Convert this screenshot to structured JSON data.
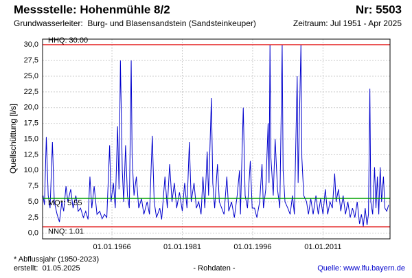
{
  "chart_data": {
    "type": "line",
    "title": "Messstelle: Hohenmühle 8/2",
    "number": "Nr: 5503",
    "subtitle": "Grundwasserleiter:  Burg- und Blasensandstein (Sandsteinkeuper)",
    "period": "Zeitraum: Jul 1951 - Apr 2025",
    "y_label": "Quellschüttung [l/s]",
    "footnote": "* Abflussjahr (1950-2023)",
    "created": "erstellt:  01.05.2025",
    "raw": "- Rohdaten -",
    "source": "Quelle: www.lfu.bayern.de",
    "xlim": [
      1951.2,
      2025.3
    ],
    "ylim": [
      -0.9,
      30.9
    ],
    "grid": true,
    "xticks": [
      {
        "value": 1966,
        "label": "01.01.1966"
      },
      {
        "value": 1981,
        "label": "01.01.1981"
      },
      {
        "value": 1996,
        "label": "01.01.1996"
      },
      {
        "value": 2011,
        "label": "01.01.2011"
      }
    ],
    "yticks": [
      {
        "value": 0,
        "label": "0,0"
      },
      {
        "value": 2.5,
        "label": "2,5"
      },
      {
        "value": 5,
        "label": "5,0"
      },
      {
        "value": 7.5,
        "label": "7,5"
      },
      {
        "value": 10,
        "label": "10,0"
      },
      {
        "value": 12.5,
        "label": "12,5"
      },
      {
        "value": 15,
        "label": "15,0"
      },
      {
        "value": 17.5,
        "label": "17,5"
      },
      {
        "value": 20,
        "label": "20,0"
      },
      {
        "value": 22.5,
        "label": "22,5"
      },
      {
        "value": 25,
        "label": "25,0"
      },
      {
        "value": 27.5,
        "label": "27,5"
      },
      {
        "value": 30,
        "label": "30,0"
      }
    ],
    "reference_lines": [
      {
        "label": "HHQ: 30.00",
        "value": 30,
        "color": "#e00000"
      },
      {
        "label": "MQ*: 5.55",
        "value": 5.55,
        "color": "#00a000"
      },
      {
        "label": "NNQ: 1.01",
        "value": 1.01,
        "color": "#e00000"
      }
    ],
    "series": [
      {
        "name": "Quellschüttung",
        "color": "#0000cc",
        "x": [
          1951.3,
          1951.6,
          1952,
          1952.4,
          1952.8,
          1953.3,
          1953.7,
          1954.3,
          1954.8,
          1955.3,
          1955.7,
          1956.2,
          1956.6,
          1957.2,
          1957.7,
          1958.3,
          1958.8,
          1959.3,
          1959.9,
          1960.4,
          1960.9,
          1961.3,
          1961.7,
          1962.2,
          1962.8,
          1963.4,
          1963.9,
          1964.4,
          1964.9,
          1965.5,
          1965.8,
          1966.3,
          1966.7,
          1967.2,
          1967.5,
          1967.8,
          1968.2,
          1968.5,
          1968.9,
          1969.3,
          1969.7,
          1970.1,
          1970.3,
          1970.7,
          1971.2,
          1971.7,
          1972.3,
          1972.8,
          1973.5,
          1974,
          1974.6,
          1975,
          1975.5,
          1976.2,
          1976.6,
          1977.3,
          1977.8,
          1978.3,
          1978.8,
          1979.3,
          1979.8,
          1980.4,
          1981,
          1981.5,
          1982,
          1982.5,
          1982.9,
          1983.5,
          1984,
          1984.5,
          1985,
          1985.4,
          1985.8,
          1986.3,
          1986.6,
          1987.2,
          1987.5,
          1987.9,
          1988.5,
          1988.9,
          1989.4,
          1989.9,
          1990.5,
          1990.9,
          1991.5,
          1992.1,
          1992.7,
          1993.2,
          1993.4,
          1994,
          1994.4,
          1994.9,
          1995.5,
          1995.9,
          1996.4,
          1996.9,
          1997.5,
          1998,
          1998.3,
          1998.8,
          1999.3,
          1999.5,
          1999.7,
          1999.9,
          2000.4,
          2000.8,
          2001.3,
          2001.8,
          2002.3,
          2002.5,
          2002.9,
          2003.5,
          2004,
          2004.5,
          2004.9,
          2005.5,
          2005.7,
          2006.3,
          2006.5,
          2006.9,
          2007.5,
          2007.9,
          2008.4,
          2008.9,
          2009.5,
          2010,
          2010.5,
          2011,
          2011.5,
          2012,
          2012.5,
          2013,
          2013.5,
          2013.8,
          2014.3,
          2014.8,
          2015.3,
          2015.8,
          2016.3,
          2016.8,
          2017.3,
          2017.8,
          2018.3,
          2018.8,
          2019.2,
          2019.6,
          2020,
          2020.4,
          2020.7,
          2021,
          2021.2,
          2021.6,
          2022,
          2022.3,
          2022.6,
          2022.9,
          2023.2,
          2023.5,
          2023.9,
          2024.2,
          2024.6,
          2025
        ],
        "values": [
          6,
          4.5,
          15.3,
          6,
          4,
          14.5,
          5,
          3,
          1.8,
          5,
          3.5,
          7.5,
          5,
          7,
          4,
          6,
          3.5,
          4,
          2.5,
          3.5,
          2.2,
          9,
          4,
          7.5,
          3,
          3.5,
          2.3,
          3,
          2.5,
          14,
          5,
          8,
          4,
          17,
          7,
          27.5,
          10,
          5,
          14,
          6,
          4,
          27.5,
          12,
          6,
          9,
          4,
          5.5,
          3,
          5,
          3,
          15.5,
          5,
          2.5,
          4,
          2.2,
          9,
          4,
          11,
          5,
          8,
          4,
          6.5,
          3.5,
          8,
          4,
          14.5,
          5,
          8,
          4,
          5,
          3,
          9,
          4,
          13,
          6,
          21.5,
          8,
          4,
          11,
          5,
          4,
          3,
          9,
          3.5,
          5,
          2.5,
          6,
          10,
          3,
          20,
          6,
          4,
          11.5,
          4,
          4,
          2.5,
          5,
          11,
          4,
          7,
          17.5,
          8,
          30,
          12,
          6,
          15,
          7,
          4,
          30,
          10,
          5,
          4,
          3,
          6,
          3,
          25,
          8,
          30,
          12,
          6,
          5,
          3,
          5.5,
          3,
          6,
          3,
          5.5,
          3,
          7,
          3,
          5,
          4,
          9.5,
          5,
          7,
          3.5,
          6,
          3,
          5,
          2.5,
          4,
          2.5,
          5,
          1.5,
          3,
          1.1,
          4,
          1.3,
          3,
          23,
          5,
          3,
          10.5,
          4,
          9,
          3,
          10.5,
          5,
          9,
          4,
          3.5,
          4.5
        ]
      }
    ]
  }
}
